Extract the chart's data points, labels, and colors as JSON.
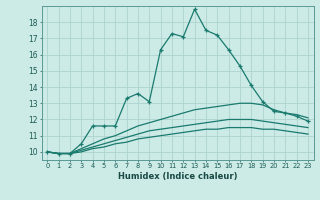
{
  "xlabel": "Humidex (Indice chaleur)",
  "background_color": "#cceae6",
  "grid_color": "#aed4d0",
  "line_color": "#1a7a6e",
  "x": [
    0,
    1,
    2,
    3,
    4,
    5,
    6,
    7,
    8,
    9,
    10,
    11,
    12,
    13,
    14,
    15,
    16,
    17,
    18,
    19,
    20,
    21,
    22,
    23
  ],
  "y_main": [
    10.0,
    9.9,
    9.9,
    10.5,
    11.6,
    11.6,
    11.6,
    13.3,
    13.6,
    13.1,
    16.3,
    17.3,
    17.1,
    18.8,
    17.5,
    17.2,
    16.3,
    15.3,
    14.1,
    13.1,
    12.5,
    12.4,
    12.2,
    11.9
  ],
  "y_upper": [
    10.0,
    9.9,
    9.9,
    10.2,
    10.5,
    10.8,
    11.0,
    11.3,
    11.6,
    11.8,
    12.0,
    12.2,
    12.4,
    12.6,
    12.7,
    12.8,
    12.9,
    13.0,
    13.0,
    12.9,
    12.6,
    12.4,
    12.3,
    12.1
  ],
  "y_mid": [
    10.0,
    9.9,
    9.9,
    10.1,
    10.3,
    10.5,
    10.7,
    10.9,
    11.1,
    11.3,
    11.4,
    11.5,
    11.6,
    11.7,
    11.8,
    11.9,
    12.0,
    12.0,
    12.0,
    11.9,
    11.8,
    11.7,
    11.6,
    11.5
  ],
  "y_lower": [
    10.0,
    9.9,
    9.9,
    10.0,
    10.2,
    10.3,
    10.5,
    10.6,
    10.8,
    10.9,
    11.0,
    11.1,
    11.2,
    11.3,
    11.4,
    11.4,
    11.5,
    11.5,
    11.5,
    11.4,
    11.4,
    11.3,
    11.2,
    11.1
  ],
  "ylim": [
    9.5,
    19.0
  ],
  "xlim": [
    -0.5,
    23.5
  ],
  "yticks": [
    10,
    11,
    12,
    13,
    14,
    15,
    16,
    17,
    18
  ],
  "xticks": [
    0,
    1,
    2,
    3,
    4,
    5,
    6,
    7,
    8,
    9,
    10,
    11,
    12,
    13,
    14,
    15,
    16,
    17,
    18,
    19,
    20,
    21,
    22,
    23
  ]
}
